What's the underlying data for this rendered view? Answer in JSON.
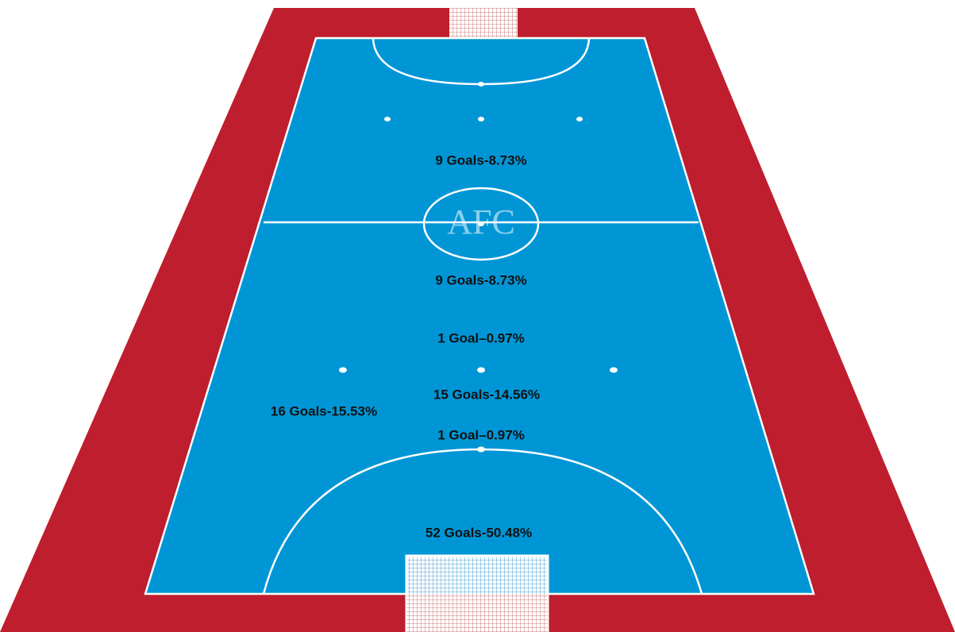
{
  "logo": "AFC",
  "zones": [
    {
      "label": "9 Goals-8.73%"
    },
    {
      "label": "9 Goals-8.73%"
    },
    {
      "label": "1 Goal–0.97%"
    },
    {
      "label": "15 Goals-14.56%"
    },
    {
      "label": "16 Goals-15.53%"
    },
    {
      "label": "1 Goal–0.97%"
    },
    {
      "label": "52 Goals-50.48%"
    }
  ]
}
